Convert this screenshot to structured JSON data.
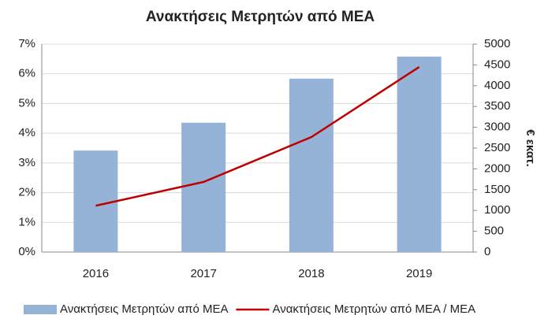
{
  "chart_data": {
    "type": "bar",
    "title": "Ανακτήσεις Μετρητών από ΜΕΑ",
    "y2label": "€ εκατ.",
    "categories": [
      "2016",
      "2017",
      "2018",
      "2019"
    ],
    "series": [
      {
        "name": "Ανακτήσεις Μετρητών από ΜΕΑ",
        "type": "bar",
        "axis": "y2",
        "color": "#95b3d7",
        "values": [
          2440,
          3110,
          4170,
          4700
        ]
      },
      {
        "name": "Ανακτήσεις Μετρητών από ΜΕΑ / ΜΕΑ",
        "type": "line",
        "axis": "y",
        "color": "#c00000",
        "values": [
          1.56,
          2.36,
          3.87,
          6.23
        ]
      }
    ],
    "ylim": [
      0,
      7
    ],
    "yticks": [
      {
        "value": 0,
        "label": "0%"
      },
      {
        "value": 1,
        "label": "1%"
      },
      {
        "value": 2,
        "label": "2%"
      },
      {
        "value": 3,
        "label": "3%"
      },
      {
        "value": 4,
        "label": "4%"
      },
      {
        "value": 5,
        "label": "5%"
      },
      {
        "value": 6,
        "label": "6%"
      },
      {
        "value": 7,
        "label": "7%"
      }
    ],
    "y2lim": [
      0,
      5000
    ],
    "y2ticks": [
      0,
      500,
      1000,
      1500,
      2000,
      2500,
      3000,
      3500,
      4000,
      4500,
      5000
    ],
    "grid": true,
    "legend": "bottom"
  }
}
